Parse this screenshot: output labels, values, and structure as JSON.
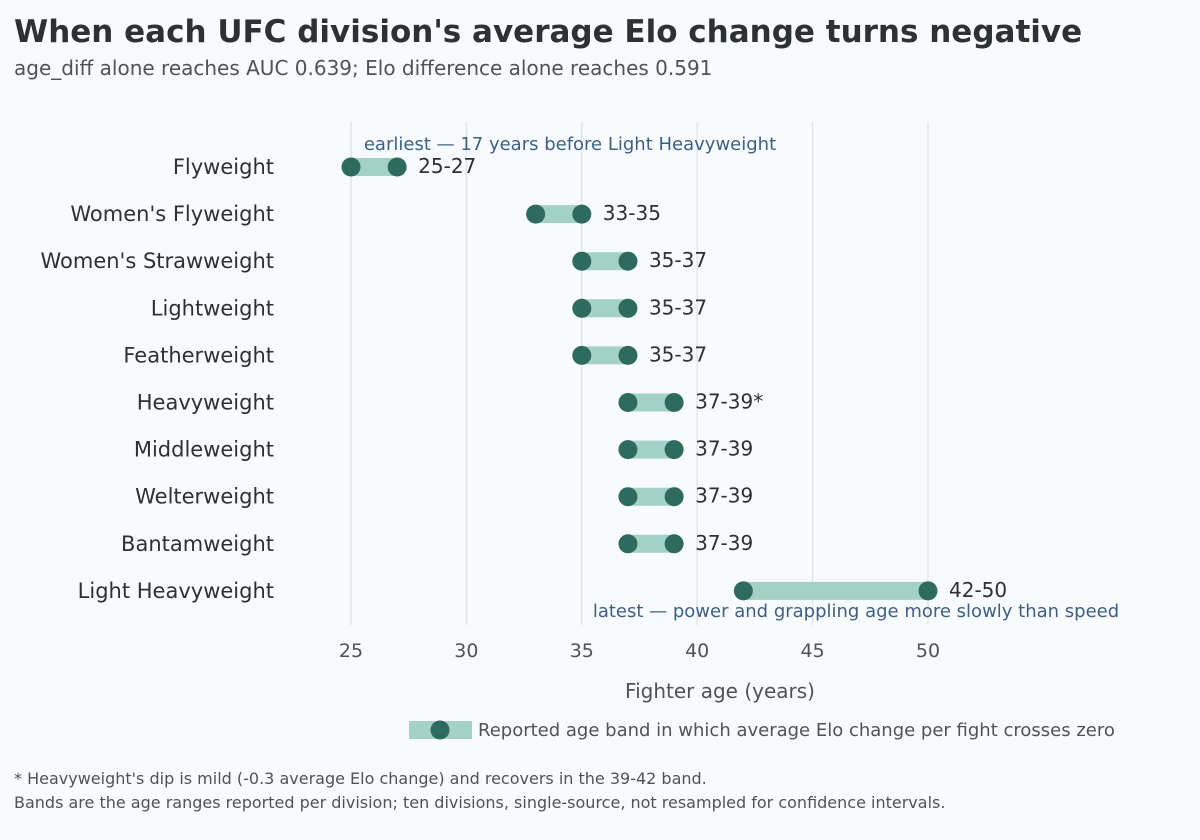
{
  "title": "When each UFC division's average Elo change turns negative",
  "subtitle": "age_diff alone reaches AUC 0.639; Elo difference alone reaches 0.591",
  "colors": {
    "background": "#f8fbfd",
    "band": "#a3d1c3",
    "dot": "#2e6a5d",
    "annotation": "#3e5f85",
    "grid": "#e2e5e8",
    "text": "#2b3134",
    "muted": "#4d5357"
  },
  "chart_data": {
    "type": "dumbbell",
    "xlabel": "Fighter age (years)",
    "xlim": [
      25,
      50
    ],
    "xticks": [
      25,
      30,
      35,
      40,
      45,
      50
    ],
    "grid": "vertical",
    "legend": {
      "placement": "bottom",
      "label": "Reported age band in which average Elo change per fight crosses zero"
    },
    "series": [
      {
        "category": "Flyweight",
        "low": 25,
        "high": 27,
        "label": "25-27"
      },
      {
        "category": "Women's Flyweight",
        "low": 33,
        "high": 35,
        "label": "33-35"
      },
      {
        "category": "Women's Strawweight",
        "low": 35,
        "high": 37,
        "label": "35-37"
      },
      {
        "category": "Lightweight",
        "low": 35,
        "high": 37,
        "label": "35-37"
      },
      {
        "category": "Featherweight",
        "low": 35,
        "high": 37,
        "label": "35-37"
      },
      {
        "category": "Heavyweight",
        "low": 37,
        "high": 39,
        "label": "37-39*"
      },
      {
        "category": "Middleweight",
        "low": 37,
        "high": 39,
        "label": "37-39"
      },
      {
        "category": "Welterweight",
        "low": 37,
        "high": 39,
        "label": "37-39"
      },
      {
        "category": "Bantamweight",
        "low": 37,
        "high": 39,
        "label": "37-39"
      },
      {
        "category": "Light Heavyweight",
        "low": 42,
        "high": 50,
        "label": "42-50"
      }
    ],
    "annotations": [
      {
        "text": "earliest — 17 years before Light Heavyweight",
        "category": "Flyweight"
      },
      {
        "text": "latest — power and grappling age more slowly than speed",
        "category": "Light Heavyweight"
      }
    ]
  },
  "footnotes": [
    "* Heavyweight's dip is mild (-0.3 average Elo change) and recovers in the 39-42 band.",
    "Bands are the age ranges reported per division; ten divisions, single-source, not resampled for confidence intervals."
  ]
}
